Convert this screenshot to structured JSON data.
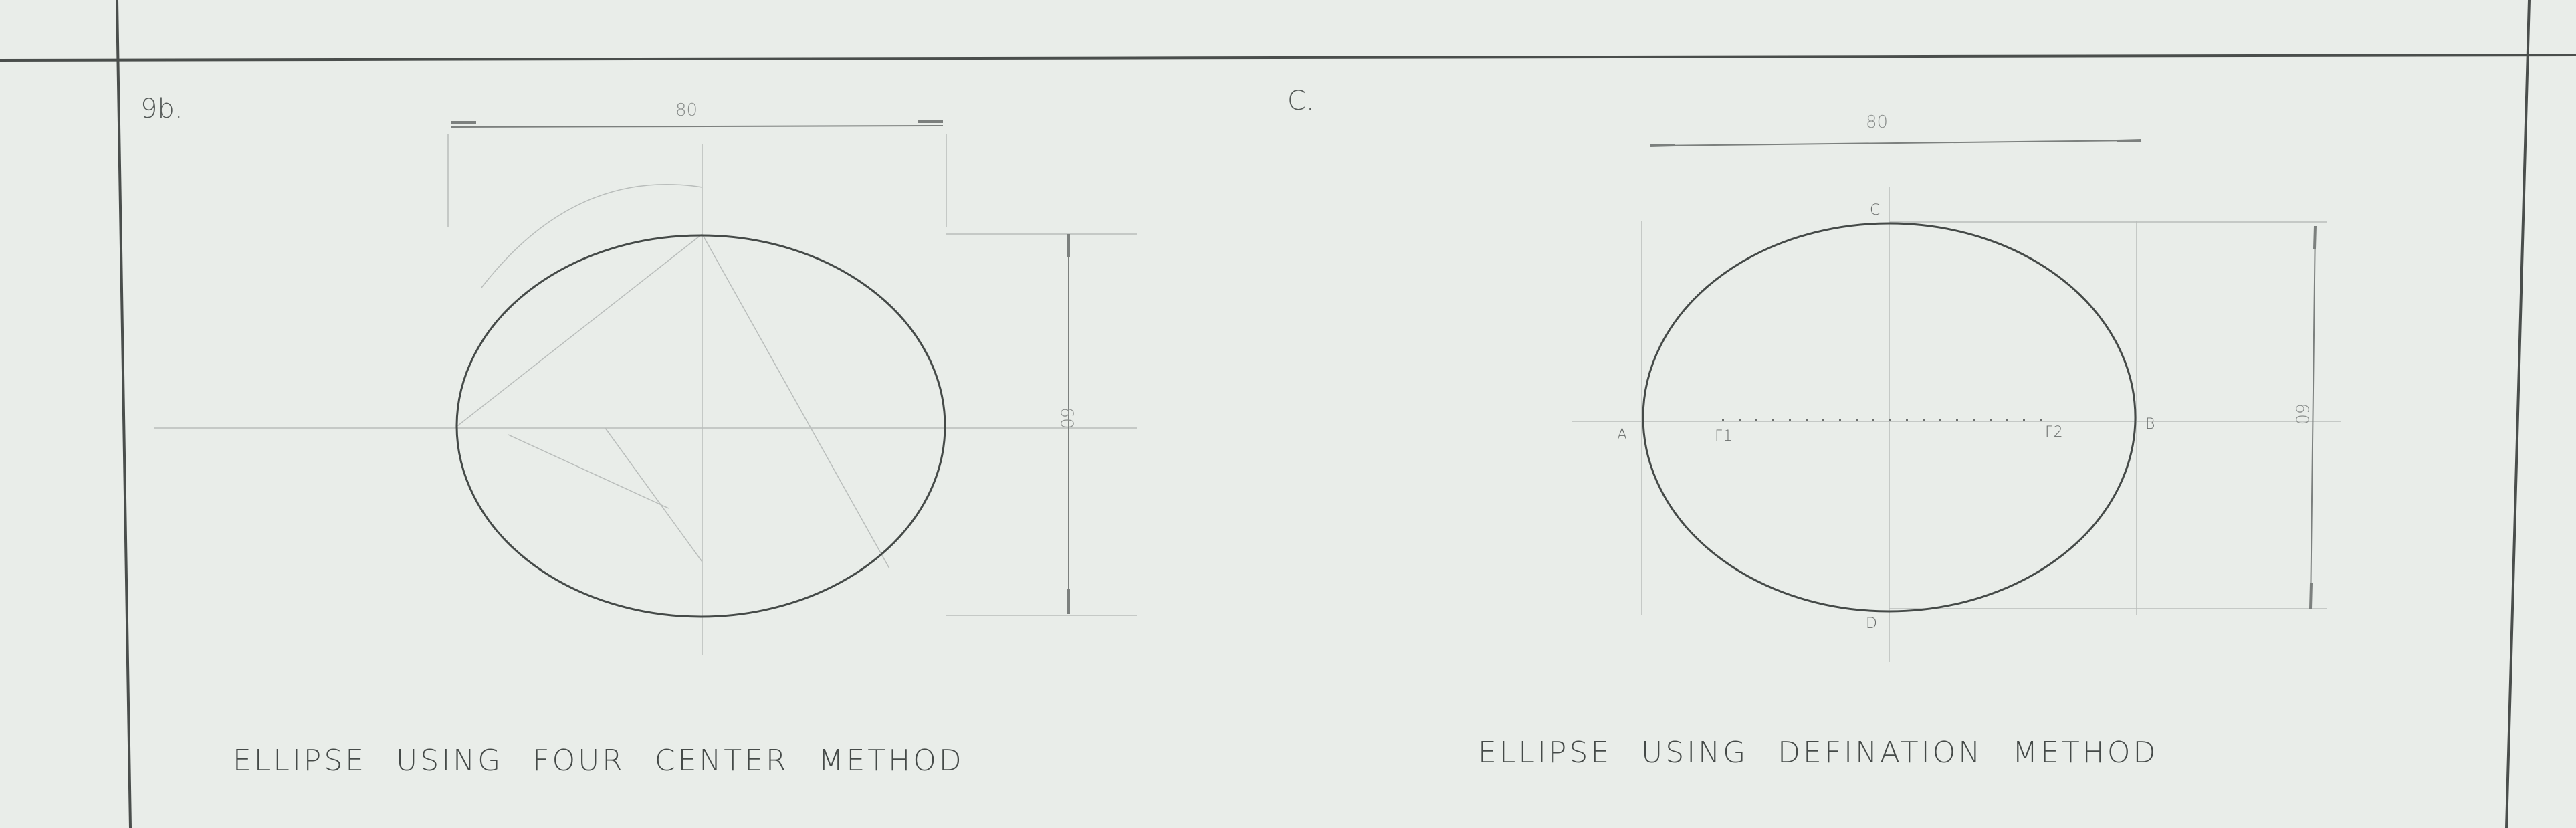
{
  "problem_b": "9b.",
  "problem_c": "C.",
  "left_figure": {
    "width_dim": "80",
    "height_dim": "60",
    "caption": "ELLIPSE USING FOUR CENTER METHOD"
  },
  "right_figure": {
    "width_dim": "80",
    "height_dim": "60",
    "point_a": "A",
    "point_b": "B",
    "point_c": "C",
    "point_d": "D",
    "focus_1": "F1",
    "focus_2": "F2",
    "caption": "ELLIPSE USING DEFINATION METHOD"
  }
}
